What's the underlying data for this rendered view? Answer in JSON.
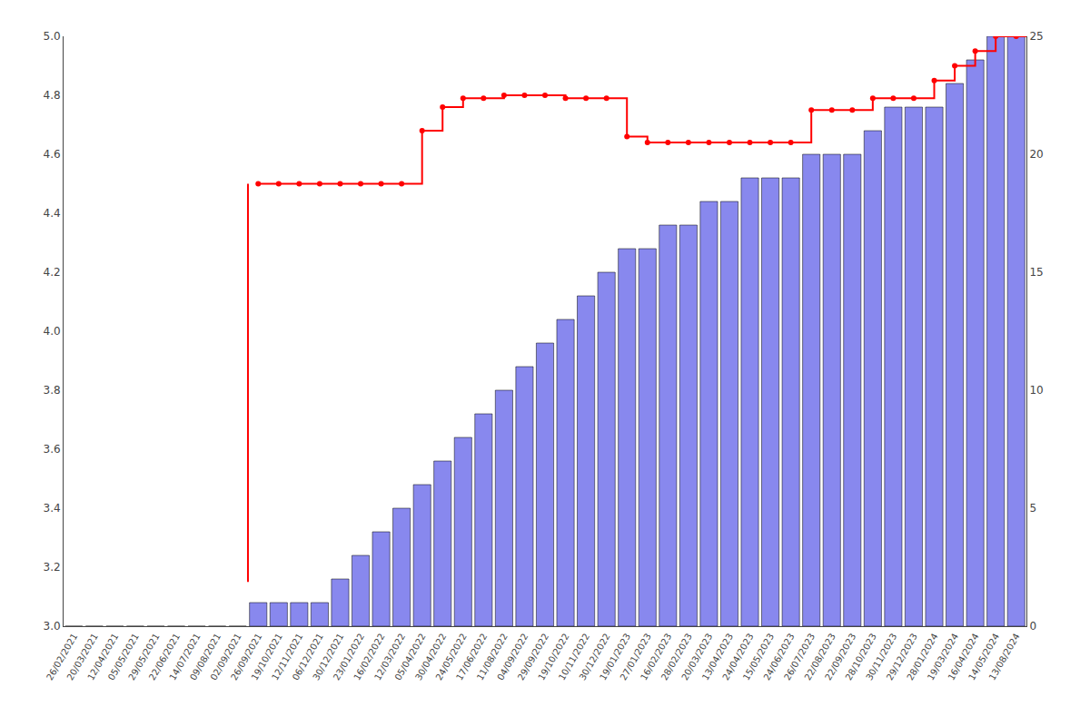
{
  "chart_data": {
    "type": "bar",
    "categories": [
      "26/02/2021",
      "20/03/2021",
      "12/04/2021",
      "05/05/2021",
      "29/05/2021",
      "22/06/2021",
      "14/07/2021",
      "09/08/2021",
      "02/09/2021",
      "26/09/2021",
      "19/10/2021",
      "12/11/2021",
      "06/12/2021",
      "30/12/2021",
      "23/01/2022",
      "16/02/2022",
      "12/03/2022",
      "05/04/2022",
      "30/04/2022",
      "24/05/2022",
      "17/06/2022",
      "11/08/2022",
      "04/09/2022",
      "29/09/2022",
      "19/10/2022",
      "10/11/2022",
      "30/12/2022",
      "19/01/2023",
      "27/01/2023",
      "16/02/2023",
      "28/02/2023",
      "20/03/2023",
      "13/04/2023",
      "24/04/2023",
      "15/05/2023",
      "24/06/2023",
      "26/07/2023",
      "22/08/2023",
      "22/09/2023",
      "28/10/2023",
      "30/11/2023",
      "29/12/2023",
      "28/01/2024",
      "19/03/2024",
      "16/04/2024",
      "14/05/2024",
      "13/08/2024"
    ],
    "series": [
      {
        "type": "bar",
        "axis": "y2",
        "color": "#8888ee",
        "values": [
          0,
          0,
          0,
          0,
          0,
          0,
          0,
          0,
          0,
          1,
          1,
          1,
          1,
          2,
          3,
          4,
          5,
          6,
          7,
          8,
          9,
          10,
          11,
          12,
          13,
          14,
          15,
          16,
          16,
          17,
          17,
          18,
          18,
          19,
          19,
          19,
          20,
          20,
          20,
          21,
          22,
          22,
          22,
          23,
          24,
          25,
          25
        ]
      },
      {
        "type": "line",
        "color": "#ff0000",
        "marker": "circle",
        "line_style": "step",
        "start_value": 3.15,
        "values": [
          null,
          null,
          null,
          null,
          null,
          null,
          null,
          null,
          null,
          4.5,
          4.5,
          4.5,
          4.5,
          4.5,
          4.5,
          4.5,
          4.5,
          4.68,
          4.76,
          4.79,
          4.79,
          4.8,
          4.8,
          4.8,
          4.79,
          4.79,
          4.79,
          4.66,
          4.64,
          4.64,
          4.64,
          4.64,
          4.64,
          4.64,
          4.64,
          4.64,
          4.75,
          4.75,
          4.75,
          4.79,
          4.79,
          4.79,
          4.85,
          4.9,
          4.95,
          5.0,
          5.0
        ]
      }
    ],
    "ylim": [
      3.0,
      5.0
    ],
    "yticks": [
      {
        "value": 3.0,
        "label": "3.0"
      },
      3.2,
      3.4,
      3.6,
      3.8,
      {
        "value": 4.0,
        "label": "4.0"
      },
      4.2,
      4.4,
      4.6,
      4.8,
      {
        "value": 5.0,
        "label": "5.0"
      }
    ],
    "y2lim": [
      0,
      25
    ],
    "y2ticks": [
      0,
      5,
      10,
      15,
      20,
      25
    ],
    "grid": false
  }
}
